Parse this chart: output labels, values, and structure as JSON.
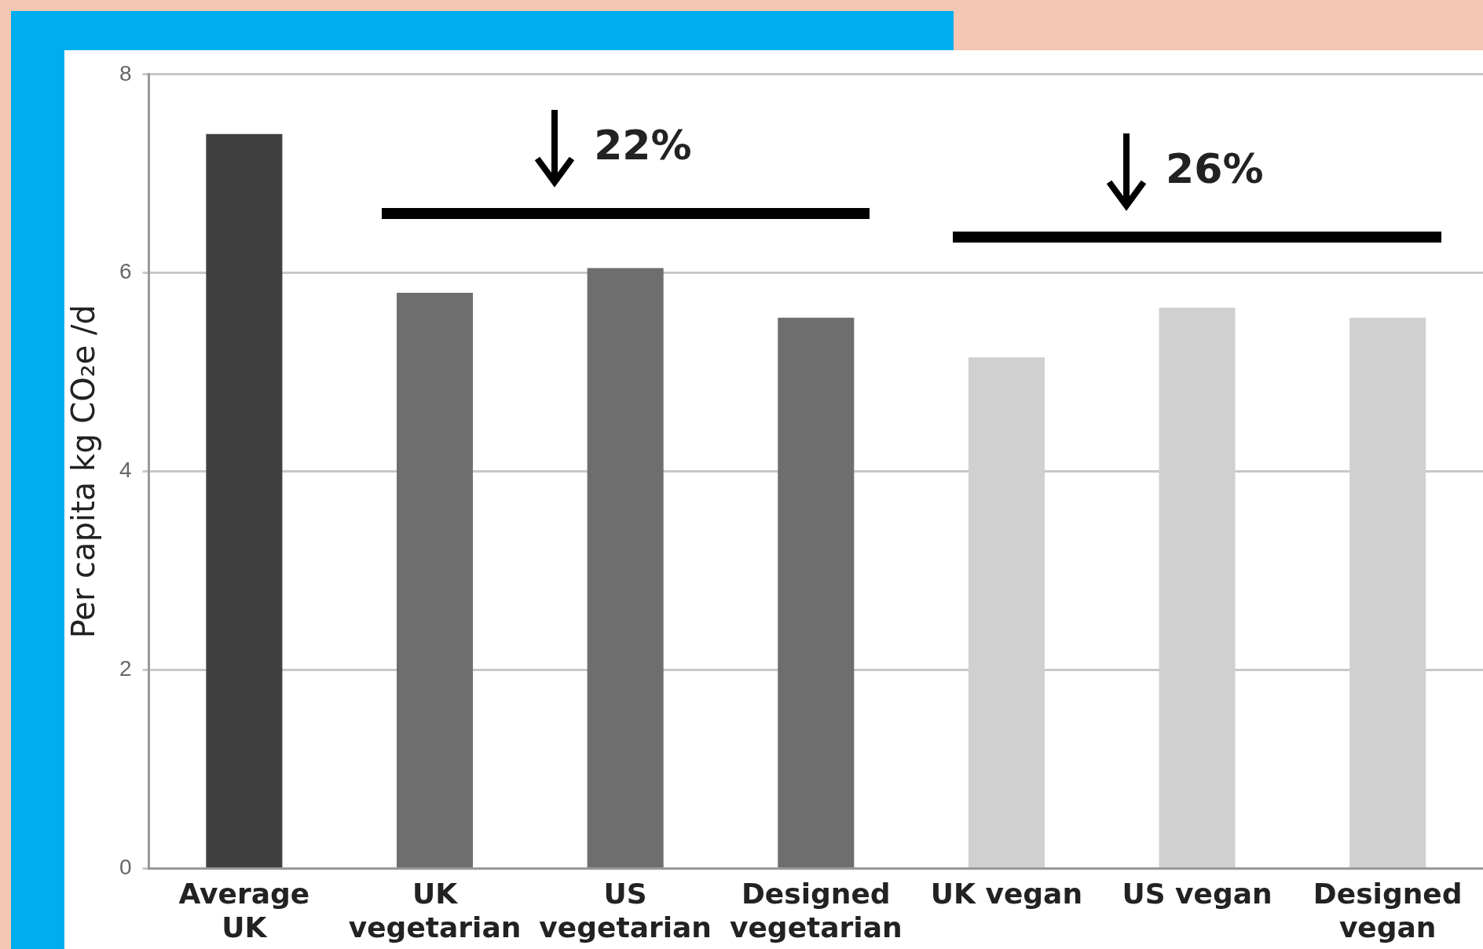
{
  "chart_data": {
    "type": "bar",
    "ylabel": "Per capita kg CO₂e /d",
    "categories": [
      "Average UK",
      "UK vegetarian",
      "US vegetarian",
      "Designed vegetarian",
      "UK vegan",
      "US vegan",
      "Designed vegan"
    ],
    "values": [
      7.4,
      5.8,
      6.05,
      5.55,
      5.15,
      5.65,
      5.55
    ],
    "colors": [
      "#404040",
      "#6e6e6e",
      "#6e6e6e",
      "#6e6e6e",
      "#d0d0d0",
      "#d0d0d0",
      "#d0d0d0"
    ],
    "ylim": [
      0,
      8
    ],
    "yticks": [
      0,
      2,
      4,
      6,
      8
    ],
    "grid": "y",
    "annotations": [
      "22%",
      "26%"
    ]
  }
}
